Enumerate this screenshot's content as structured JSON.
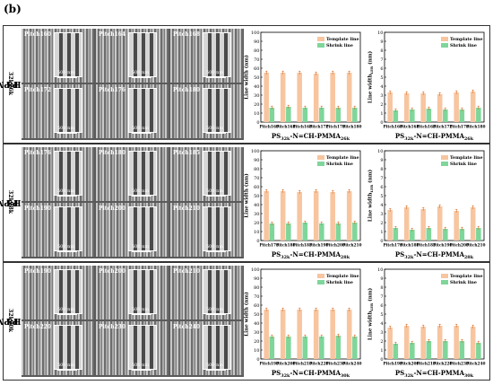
{
  "panel_label": "(b)",
  "colors": {
    "template": "#f7c59f",
    "shrink": "#7fd69a",
    "error": "#d35400"
  },
  "legend": {
    "template": "Template line",
    "shrink": "Shrink line"
  },
  "scale_label": "500 nm",
  "rows": [
    {
      "side_label": "PS32k-N=CH-PMMA26k",
      "chart_caption": "PS32k-N=CH-PMMA26k",
      "sem_tiles": [
        "Pitch160",
        "Pitch164",
        "Pitch168",
        "Pitch172",
        "Pitch176",
        "Pitch180"
      ]
    },
    {
      "side_label": "PS32k-N=CH-PMMA28k",
      "chart_caption": "PS32k-N=CH-PMMA28k",
      "sem_tiles": [
        "Pitch176",
        "Pitch180",
        "Pitch185",
        "Pitch190",
        "Pitch200",
        "Pitch210"
      ]
    },
    {
      "side_label": "PS32k-N=CH-PMMA30k",
      "chart_caption": "PS32k-N=CH-PMMA30k",
      "sem_tiles": [
        "Pitch190",
        "Pitch200",
        "Pitch210",
        "Pitch220",
        "Pitch230",
        "Pitch240"
      ]
    }
  ],
  "chart_data": [
    {
      "type": "bar",
      "ylabel": "Line width (nm)",
      "ylim": [
        0,
        100
      ],
      "yticks": [
        0,
        10,
        20,
        30,
        40,
        50,
        60,
        70,
        80,
        90,
        100
      ],
      "categories": [
        "Pitch160",
        "Pitch164",
        "Pitch168",
        "Pitch172",
        "Pitch176",
        "Pitch180"
      ],
      "series": [
        {
          "name": "Template line",
          "values": [
            55,
            55,
            55,
            54,
            55,
            55
          ]
        },
        {
          "name": "Shrink line",
          "values": [
            16,
            17,
            16,
            16,
            16,
            16
          ]
        }
      ],
      "legend": "top-right"
    },
    {
      "type": "bar",
      "ylabel": "Line width",
      "ylabel_sub": "LER",
      "ylabel_unit": "(nm)",
      "ylim": [
        0,
        10
      ],
      "yticks": [
        0,
        1,
        2,
        3,
        4,
        5,
        6,
        7,
        8,
        9,
        10
      ],
      "categories": [
        "Pitch160",
        "Pitch164",
        "Pitch168",
        "Pitch172",
        "Pitch176",
        "Pitch180"
      ],
      "series": [
        {
          "name": "Template line",
          "values": [
            3.3,
            3.2,
            3.2,
            3.1,
            3.3,
            3.4
          ]
        },
        {
          "name": "Shrink line",
          "values": [
            1.3,
            1.4,
            1.5,
            1.4,
            1.4,
            1.6
          ]
        }
      ],
      "legend": "top-right"
    },
    {
      "type": "bar",
      "ylabel": "Line width (nm)",
      "ylim": [
        0,
        100
      ],
      "yticks": [
        0,
        10,
        20,
        30,
        40,
        50,
        60,
        70,
        80,
        90,
        100
      ],
      "categories": [
        "Pitch176",
        "Pitch180",
        "Pitch185",
        "Pitch190",
        "Pitch200",
        "Pitch210"
      ],
      "series": [
        {
          "name": "Template line",
          "values": [
            55,
            55,
            54,
            55,
            54,
            55
          ]
        },
        {
          "name": "Shrink line",
          "values": [
            19,
            19,
            20,
            19,
            19,
            20
          ]
        }
      ],
      "legend": "top-right"
    },
    {
      "type": "bar",
      "ylabel": "Line width",
      "ylabel_sub": "LER",
      "ylabel_unit": "(nm)",
      "ylim": [
        0,
        10
      ],
      "yticks": [
        0,
        1,
        2,
        3,
        4,
        5,
        6,
        7,
        8,
        9,
        10
      ],
      "categories": [
        "Pitch176",
        "Pitch180",
        "Pitch185",
        "Pitch190",
        "Pitch200",
        "Pitch210"
      ],
      "series": [
        {
          "name": "Template line",
          "values": [
            3.4,
            3.7,
            3.5,
            3.8,
            3.3,
            3.7
          ]
        },
        {
          "name": "Shrink line",
          "values": [
            1.4,
            1.2,
            1.4,
            1.3,
            1.3,
            1.4
          ]
        }
      ],
      "legend": "top-right"
    },
    {
      "type": "bar",
      "ylabel": "Line width (nm)",
      "ylim": [
        0,
        100
      ],
      "yticks": [
        0,
        10,
        20,
        30,
        40,
        50,
        60,
        70,
        80,
        90,
        100
      ],
      "categories": [
        "Pitch190",
        "Pitch200",
        "Pitch210",
        "Pitch220",
        "Pitch230",
        "Pitch240"
      ],
      "series": [
        {
          "name": "Template line",
          "values": [
            55,
            55,
            55,
            55,
            55,
            55
          ]
        },
        {
          "name": "Shrink line",
          "values": [
            25,
            25,
            25,
            25,
            26,
            25
          ]
        }
      ],
      "legend": "top-right"
    },
    {
      "type": "bar",
      "ylabel": "Line width",
      "ylabel_sub": "LER",
      "ylabel_unit": "(nm)",
      "ylim": [
        0,
        10
      ],
      "yticks": [
        0,
        1,
        2,
        3,
        4,
        5,
        6,
        7,
        8,
        9,
        10
      ],
      "categories": [
        "Pitch190",
        "Pitch200",
        "Pitch210",
        "Pitch220",
        "Pitch230",
        "Pitch240"
      ],
      "series": [
        {
          "name": "Template line",
          "values": [
            3.5,
            3.7,
            3.6,
            3.7,
            3.7,
            3.6
          ]
        },
        {
          "name": "Shrink line",
          "values": [
            1.7,
            1.8,
            2.0,
            2.0,
            2.0,
            1.8
          ]
        }
      ],
      "legend": "top-right"
    }
  ]
}
